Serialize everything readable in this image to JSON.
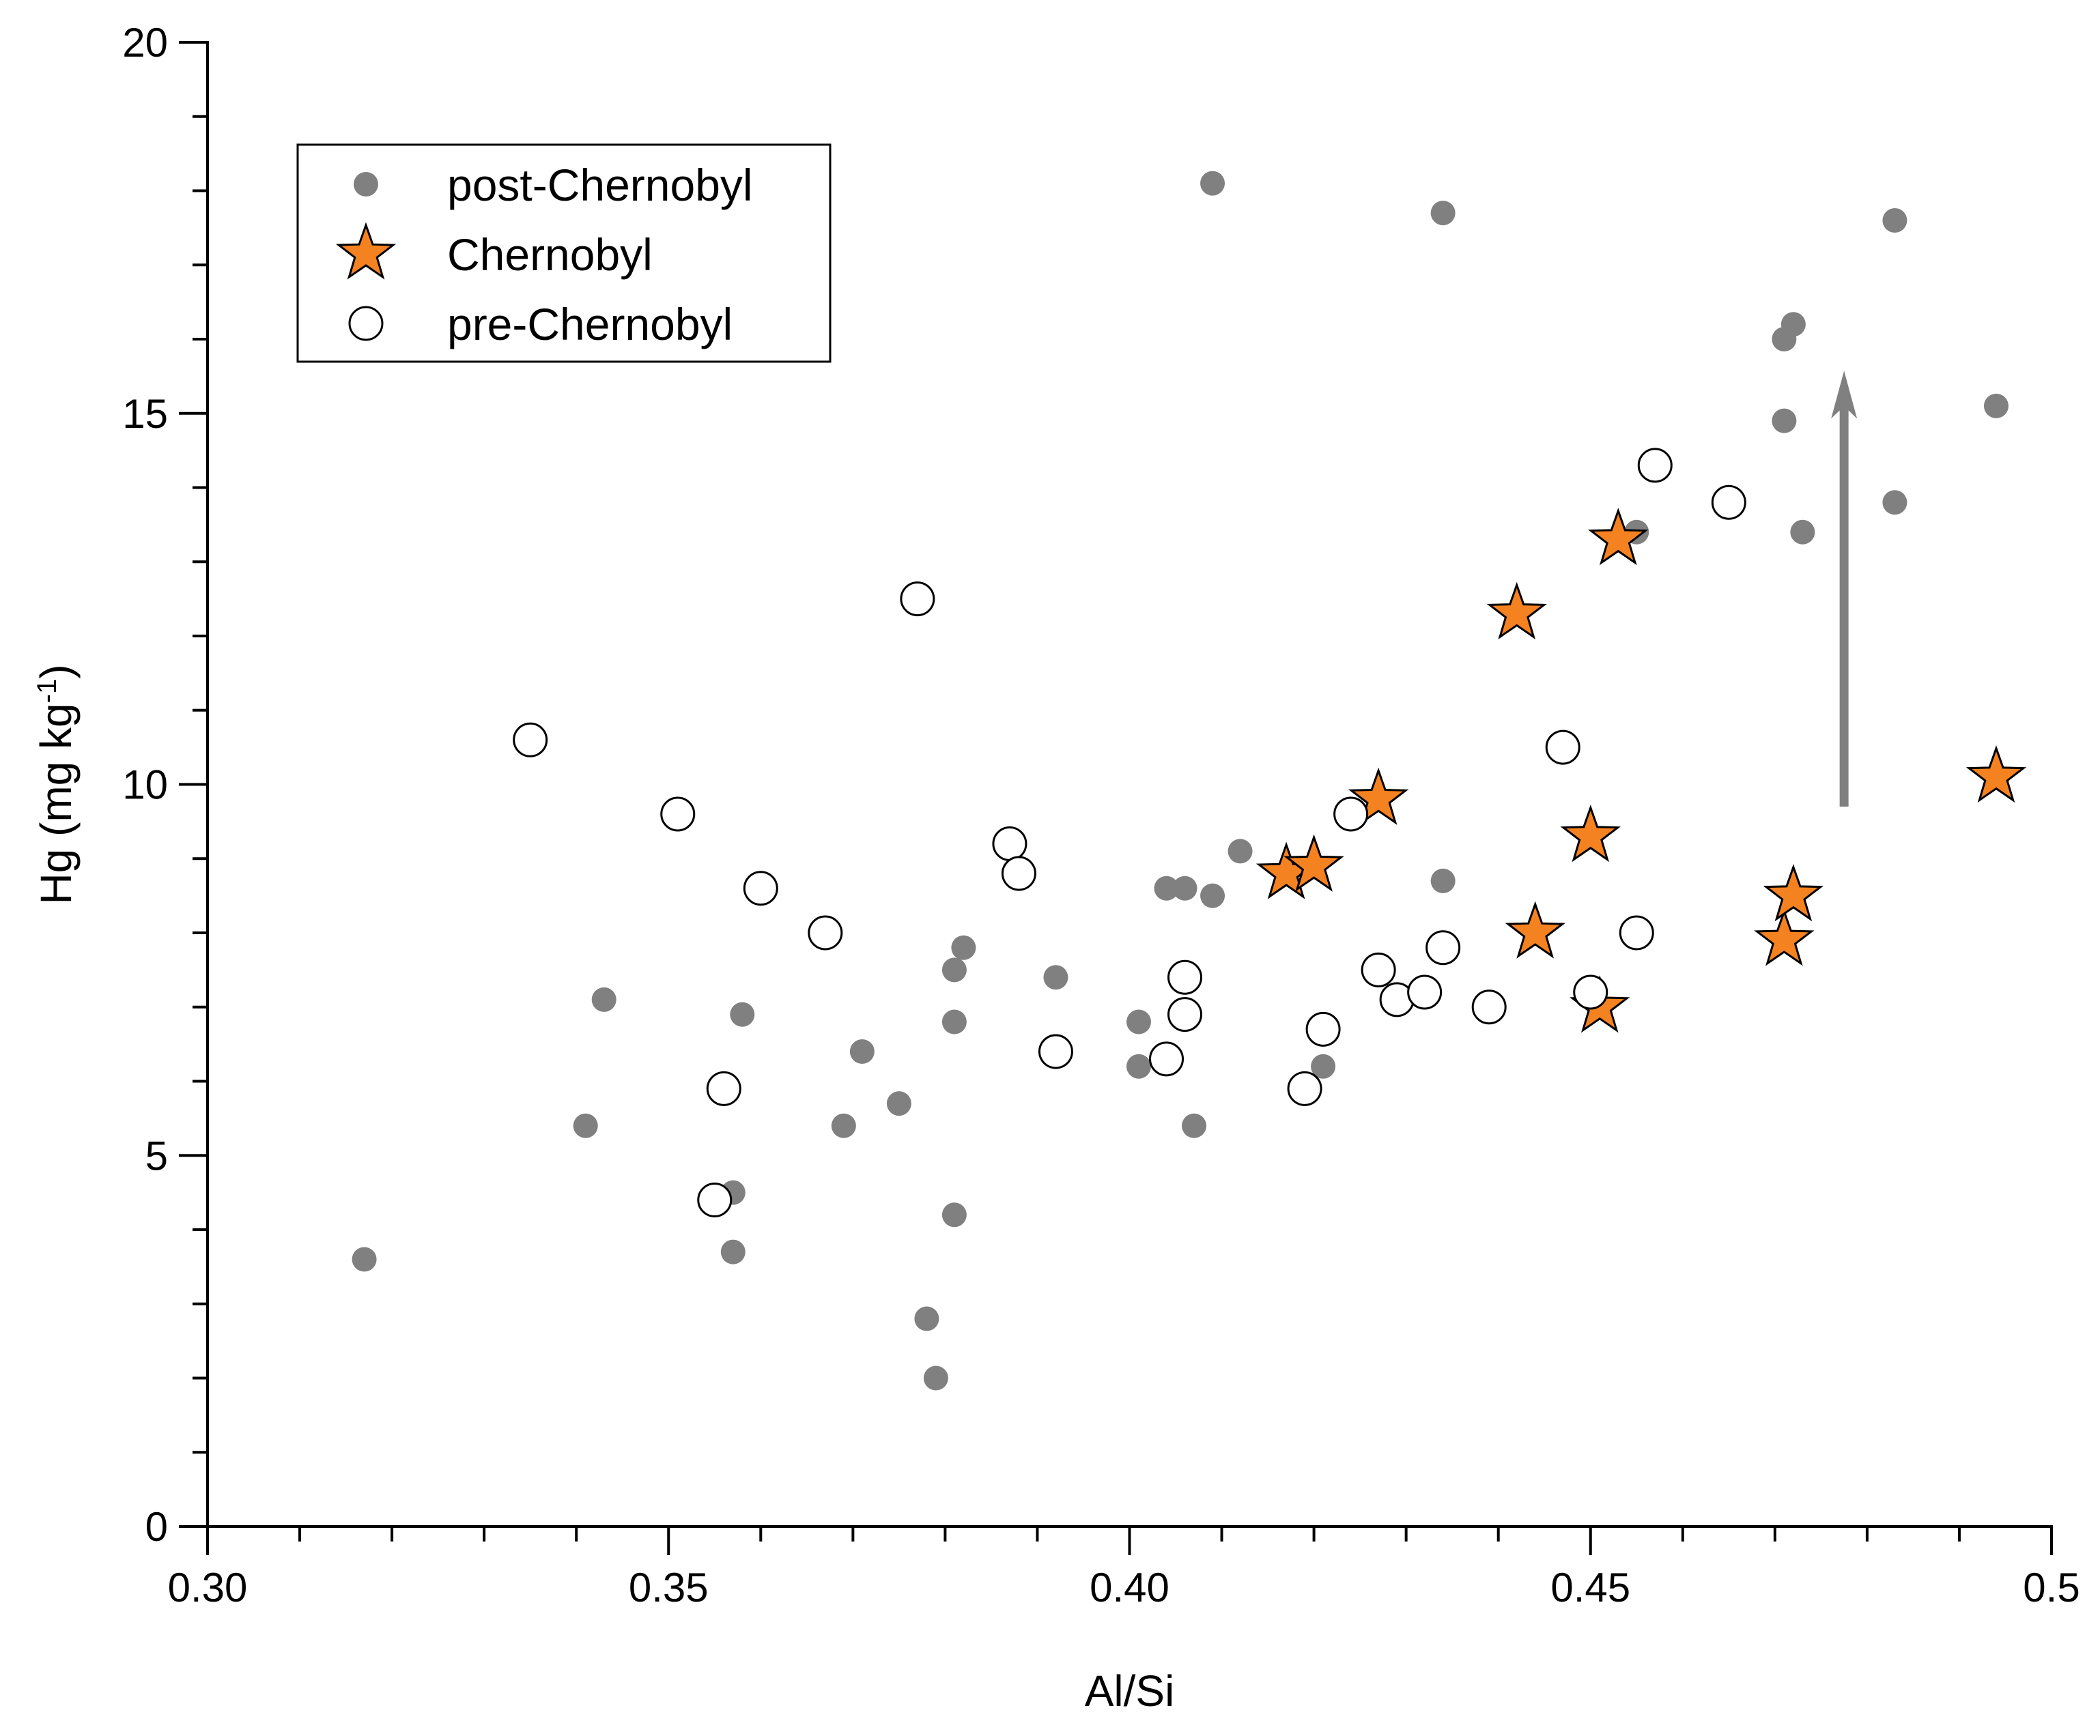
{
  "chart_data": {
    "type": "scatter",
    "title": "",
    "xlabel": "Al/Si",
    "ylabel_main": "Hg (mg kg",
    "ylabel_sup": "-1",
    "ylabel_close": ")",
    "xlim": [
      0.3,
      0.5
    ],
    "ylim": [
      0,
      20
    ],
    "x_ticks": [
      0.3,
      0.35,
      0.4,
      0.45,
      0.5
    ],
    "x_tick_labels": [
      "0.30",
      "0.35",
      "0.40",
      "0.45",
      "0.5"
    ],
    "y_ticks": [
      0,
      5,
      10,
      15,
      20
    ],
    "y_tick_labels": [
      "0",
      "5",
      "10",
      "15",
      "20"
    ],
    "grid": false,
    "legend_position": "top-left",
    "series": [
      {
        "name": "post-Chernobyl",
        "marker": "filled-circle",
        "color": "#808080",
        "points": [
          [
            0.317,
            3.6
          ],
          [
            0.341,
            5.4
          ],
          [
            0.343,
            7.1
          ],
          [
            0.357,
            3.7
          ],
          [
            0.357,
            4.5
          ],
          [
            0.358,
            6.9
          ],
          [
            0.369,
            5.4
          ],
          [
            0.371,
            6.4
          ],
          [
            0.375,
            5.7
          ],
          [
            0.378,
            2.8
          ],
          [
            0.379,
            2.0
          ],
          [
            0.381,
            4.2
          ],
          [
            0.381,
            7.5
          ],
          [
            0.381,
            6.8
          ],
          [
            0.382,
            7.8
          ],
          [
            0.392,
            7.4
          ],
          [
            0.401,
            6.8
          ],
          [
            0.401,
            6.2
          ],
          [
            0.404,
            8.6
          ],
          [
            0.406,
            8.6
          ],
          [
            0.407,
            5.4
          ],
          [
            0.409,
            18.1
          ],
          [
            0.409,
            8.5
          ],
          [
            0.412,
            9.1
          ],
          [
            0.421,
            6.2
          ],
          [
            0.434,
            17.7
          ],
          [
            0.434,
            8.7
          ],
          [
            0.455,
            13.4
          ],
          [
            0.471,
            16.0
          ],
          [
            0.471,
            14.9
          ],
          [
            0.472,
            16.2
          ],
          [
            0.473,
            13.4
          ],
          [
            0.483,
            17.6
          ],
          [
            0.483,
            13.8
          ],
          [
            0.494,
            15.1
          ]
        ]
      },
      {
        "name": "Chernobyl",
        "marker": "star",
        "color": "#f58220",
        "points": [
          [
            0.417,
            8.8
          ],
          [
            0.42,
            8.9
          ],
          [
            0.427,
            9.8
          ],
          [
            0.442,
            12.3
          ],
          [
            0.444,
            8.0
          ],
          [
            0.45,
            9.3
          ],
          [
            0.451,
            7.0
          ],
          [
            0.453,
            13.3
          ],
          [
            0.471,
            7.9
          ],
          [
            0.472,
            8.5
          ],
          [
            0.494,
            10.1
          ]
        ]
      },
      {
        "name": "pre-Chernobyl",
        "marker": "open-circle",
        "color": "#ffffff",
        "points": [
          [
            0.335,
            10.6
          ],
          [
            0.351,
            9.6
          ],
          [
            0.355,
            4.4
          ],
          [
            0.356,
            5.9
          ],
          [
            0.36,
            8.6
          ],
          [
            0.367,
            8.0
          ],
          [
            0.377,
            12.5
          ],
          [
            0.387,
            9.2
          ],
          [
            0.388,
            8.8
          ],
          [
            0.392,
            6.4
          ],
          [
            0.404,
            6.3
          ],
          [
            0.406,
            7.4
          ],
          [
            0.406,
            6.9
          ],
          [
            0.419,
            5.9
          ],
          [
            0.421,
            6.7
          ],
          [
            0.424,
            9.6
          ],
          [
            0.427,
            7.5
          ],
          [
            0.429,
            7.1
          ],
          [
            0.432,
            7.2
          ],
          [
            0.434,
            7.8
          ],
          [
            0.439,
            7.0
          ],
          [
            0.447,
            10.5
          ],
          [
            0.45,
            7.2
          ],
          [
            0.455,
            8.0
          ],
          [
            0.457,
            14.3
          ],
          [
            0.465,
            13.8
          ]
        ]
      }
    ],
    "annotations": [
      {
        "type": "arrow",
        "color": "#808080",
        "from": [
          0.4775,
          9.7
        ],
        "to": [
          0.4775,
          15.5
        ]
      }
    ]
  }
}
